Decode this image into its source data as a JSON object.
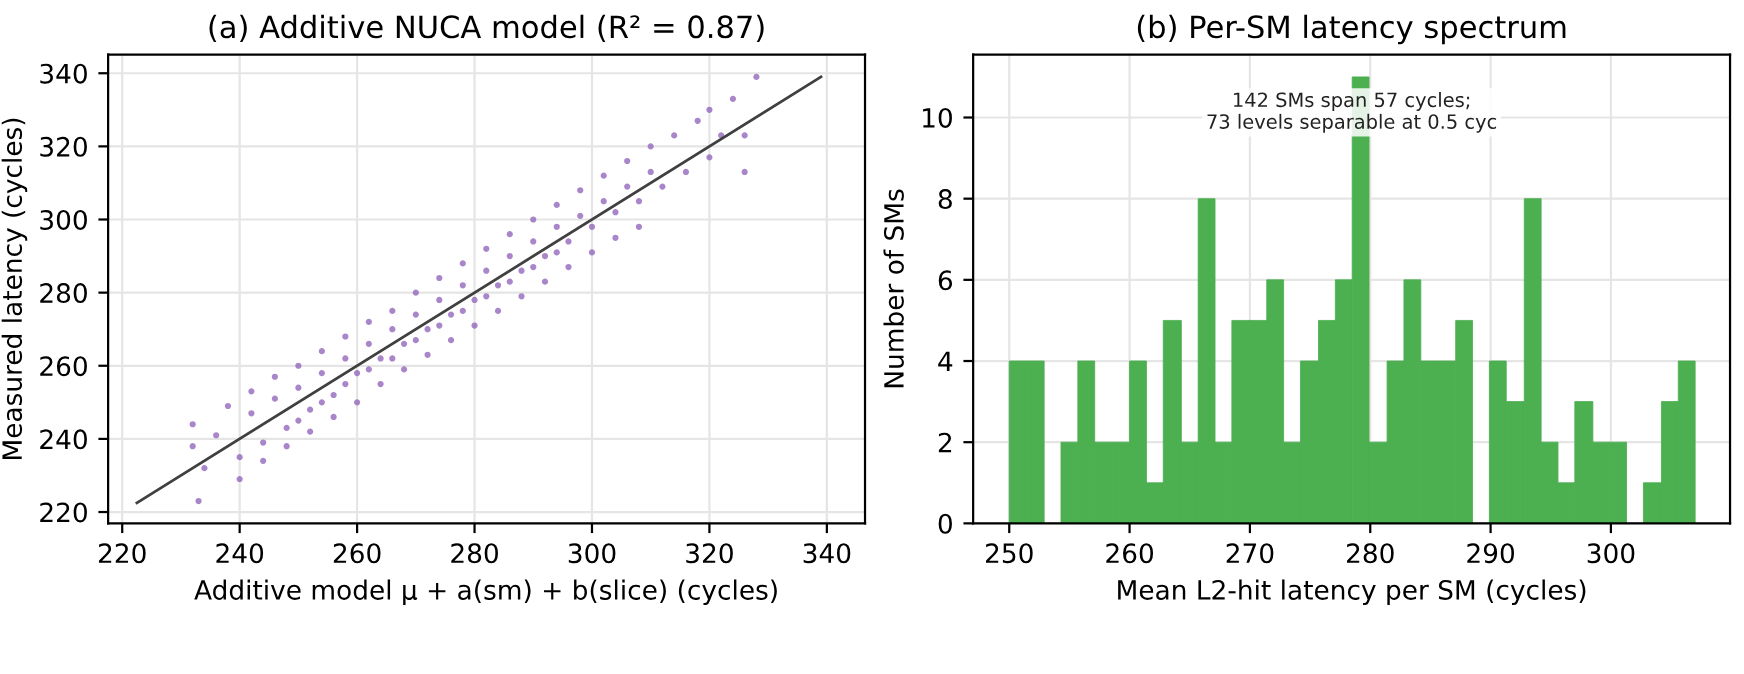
{
  "chart_data": [
    {
      "type": "scatter",
      "title": "(a) Additive NUCA model (R² = 0.87)",
      "xlabel": "Additive model μ + a(sm) + b(slice) (cycles)",
      "ylabel": "Measured latency (cycles)",
      "xlim": [
        217.6,
        346.5
      ],
      "ylim": [
        216.9,
        345.1
      ],
      "xticks": [
        220,
        240,
        260,
        280,
        300,
        320,
        340
      ],
      "yticks": [
        220,
        240,
        260,
        280,
        300,
        320,
        340
      ],
      "grid": true,
      "series": [
        {
          "type": "scatter",
          "color": "#9467bd",
          "marker": "circle",
          "x": [
            232,
            232,
            233,
            234,
            236,
            238,
            240,
            240,
            242,
            242,
            244,
            244,
            246,
            246,
            248,
            248,
            250,
            250,
            250,
            252,
            252,
            254,
            254,
            254,
            256,
            256,
            258,
            258,
            258,
            260,
            260,
            262,
            262,
            262,
            264,
            264,
            266,
            266,
            266,
            268,
            268,
            270,
            270,
            270,
            272,
            272,
            274,
            274,
            274,
            276,
            276,
            278,
            278,
            278,
            280,
            280,
            282,
            282,
            282,
            284,
            284,
            286,
            286,
            286,
            288,
            288,
            290,
            290,
            290,
            292,
            292,
            294,
            294,
            294,
            296,
            296,
            298,
            298,
            300,
            300,
            302,
            302,
            304,
            304,
            306,
            306,
            308,
            308,
            310,
            310,
            312,
            314,
            316,
            318,
            320,
            320,
            322,
            324,
            326,
            326,
            328
          ],
          "values": [
            244,
            238,
            223,
            232,
            241,
            249,
            235,
            229,
            247,
            253,
            239,
            234,
            257,
            251,
            243,
            238,
            260,
            254,
            245,
            248,
            242,
            264,
            258,
            250,
            252,
            246,
            268,
            262,
            255,
            258,
            250,
            272,
            266,
            259,
            262,
            255,
            275,
            270,
            262,
            266,
            259,
            280,
            274,
            267,
            270,
            263,
            284,
            278,
            271,
            274,
            267,
            288,
            282,
            275,
            278,
            271,
            292,
            286,
            279,
            282,
            275,
            296,
            290,
            283,
            286,
            279,
            300,
            294,
            287,
            290,
            283,
            304,
            298,
            291,
            294,
            287,
            308,
            301,
            298,
            291,
            312,
            305,
            302,
            295,
            316,
            309,
            305,
            298,
            320,
            313,
            309,
            323,
            313,
            327,
            330,
            317,
            323,
            333,
            323,
            313,
            339
          ]
        },
        {
          "type": "line",
          "color": "#404040",
          "line_style": "solid",
          "marker": "none",
          "x": [
            222.5,
            339
          ],
          "values": [
            222.5,
            339
          ]
        }
      ]
    },
    {
      "type": "histogram",
      "title": "(b) Per-SM latency spectrum",
      "xlabel": "Mean L2-hit latency per SM (cycles)",
      "ylabel": "Number of SMs",
      "color": "#4caf50",
      "xlim": [
        247.0,
        309.9
      ],
      "ylim": [
        0,
        11.55
      ],
      "xticks": [
        250,
        260,
        270,
        280,
        290,
        300
      ],
      "yticks": [
        0,
        2,
        4,
        6,
        8,
        10
      ],
      "grid": true,
      "annotations": [
        "142 SMs span 57 cycles;\n73 levels separable at 0.5 cyc"
      ],
      "bins": [
        250.0,
        251.4,
        252.9,
        254.3,
        255.7,
        257.1,
        258.6,
        260.0,
        261.4,
        262.8,
        264.3,
        265.7,
        267.1,
        268.5,
        270.0,
        271.4,
        272.8,
        274.2,
        275.7,
        277.1,
        278.5,
        279.9,
        281.4,
        282.8,
        284.2,
        285.6,
        287.1,
        288.5,
        289.9,
        291.3,
        292.8,
        294.2,
        295.6,
        297.0,
        298.5,
        299.9,
        301.3,
        302.7,
        304.2,
        305.6,
        307.0
      ],
      "values": [
        4,
        4,
        0,
        2,
        4,
        2,
        2,
        4,
        1,
        5,
        2,
        8,
        2,
        5,
        5,
        6,
        2,
        4,
        5,
        6,
        11,
        2,
        4,
        6,
        4,
        4,
        5,
        0,
        4,
        3,
        8,
        2,
        1,
        3,
        2,
        2,
        0,
        1,
        3,
        4
      ]
    }
  ]
}
